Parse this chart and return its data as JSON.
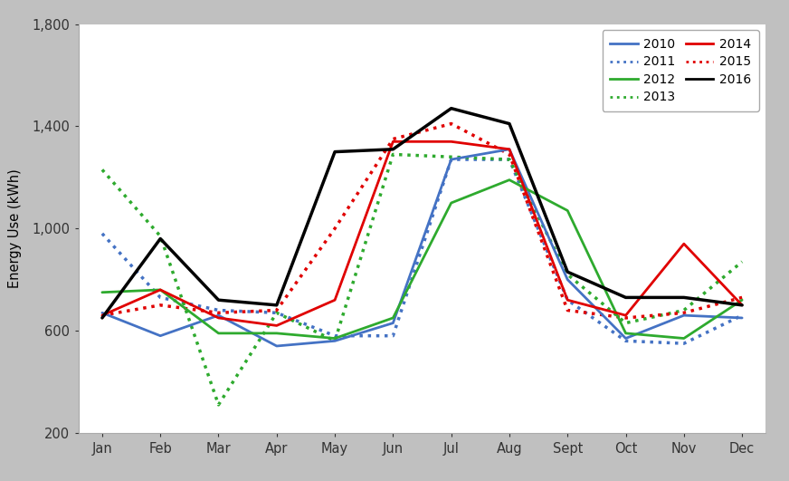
{
  "months": [
    "Jan",
    "Feb",
    "Mar",
    "Apr",
    "May",
    "Jun",
    "Jul",
    "Aug",
    "Sept",
    "Oct",
    "Nov",
    "Dec"
  ],
  "series": {
    "2010": {
      "values": [
        670,
        580,
        660,
        540,
        560,
        630,
        1270,
        1310,
        800,
        570,
        660,
        650
      ],
      "color": "#4472C4",
      "linestyle": "solid",
      "linewidth": 2.0
    },
    "2011": {
      "values": [
        980,
        730,
        680,
        670,
        580,
        580,
        1270,
        1270,
        720,
        560,
        550,
        660
      ],
      "color": "#4472C4",
      "linestyle": "dotted",
      "linewidth": 2.5
    },
    "2012": {
      "values": [
        750,
        760,
        590,
        590,
        570,
        650,
        1100,
        1190,
        1070,
        590,
        570,
        720
      ],
      "color": "#2EAA2E",
      "linestyle": "solid",
      "linewidth": 2.0
    },
    "2013": {
      "values": [
        1230,
        970,
        310,
        670,
        560,
        1290,
        1280,
        1270,
        820,
        630,
        680,
        870
      ],
      "color": "#2EAA2E",
      "linestyle": "dotted",
      "linewidth": 2.5
    },
    "2014": {
      "values": [
        660,
        760,
        650,
        620,
        720,
        1340,
        1340,
        1310,
        720,
        660,
        940,
        700
      ],
      "color": "#E00000",
      "linestyle": "solid",
      "linewidth": 2.0
    },
    "2015": {
      "values": [
        660,
        700,
        670,
        680,
        1000,
        1350,
        1410,
        1290,
        680,
        650,
        670,
        730
      ],
      "color": "#E00000",
      "linestyle": "dotted",
      "linewidth": 2.5
    },
    "2016": {
      "values": [
        650,
        960,
        720,
        700,
        1300,
        1310,
        1470,
        1410,
        830,
        730,
        730,
        700
      ],
      "color": "#000000",
      "linestyle": "solid",
      "linewidth": 2.5
    }
  },
  "ylabel": "Energy Use (kWh)",
  "ylim": [
    200,
    1800
  ],
  "yticks": [
    200,
    600,
    1000,
    1400,
    1800
  ],
  "ytick_labels": [
    "200",
    "600",
    "1,000",
    "1,400",
    "1,800"
  ],
  "outer_bg": "#C0C0C0",
  "inner_bg": "#FFFFFF",
  "legend_col1": [
    "2010",
    "2012",
    "2014",
    "2016"
  ],
  "legend_col2": [
    "2011",
    "2013",
    "2015"
  ]
}
